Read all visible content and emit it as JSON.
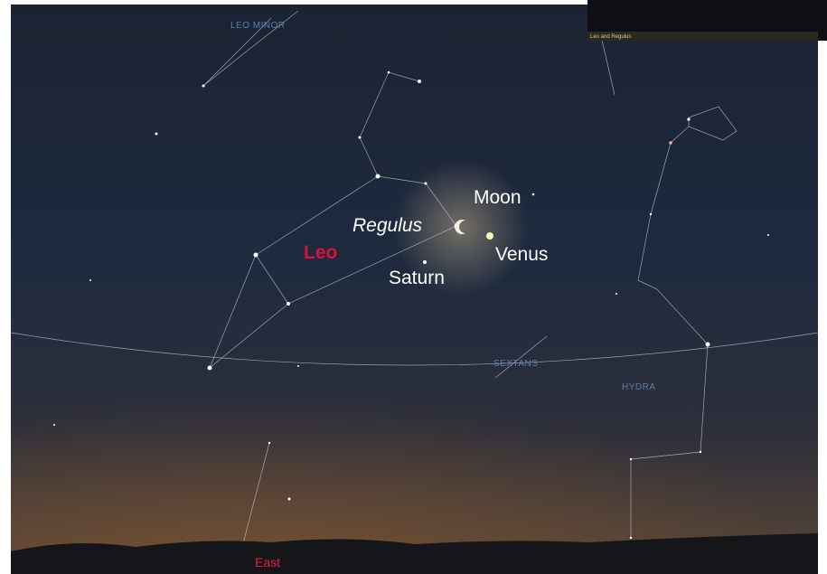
{
  "labels": {
    "leo_minor": "LEO MINOR",
    "moon": "Moon",
    "regulus": "Regulus",
    "leo": "Leo",
    "venus": "Venus",
    "saturn": "Saturn",
    "sextans": "SEXTANS",
    "hydra": "HYDRA",
    "east": "East"
  },
  "inset": {
    "caption": "Leo and Regulus"
  }
}
